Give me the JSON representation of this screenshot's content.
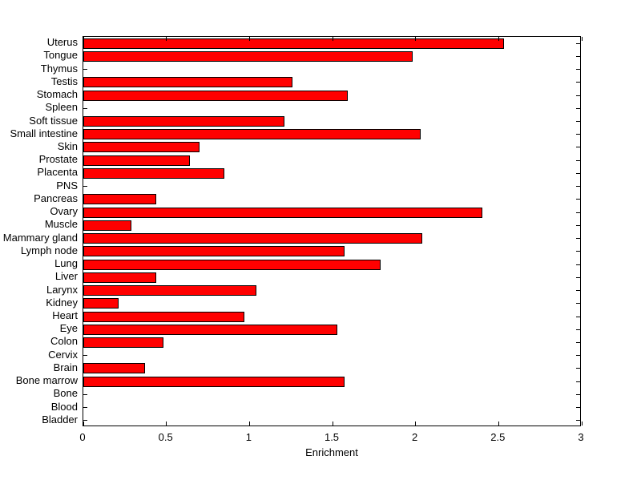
{
  "chart_data": {
    "type": "bar",
    "orientation": "horizontal",
    "title": "",
    "xlabel": "Enrichment",
    "ylabel": "",
    "xlim": [
      0,
      3
    ],
    "xtick_values": [
      0,
      0.5,
      1,
      1.5,
      2,
      2.5,
      3
    ],
    "xtick_labels": [
      "0",
      "0.5",
      "1",
      "1.5",
      "2",
      "2.5",
      "3"
    ],
    "categories": [
      "Uterus",
      "Tongue",
      "Thymus",
      "Testis",
      "Stomach",
      "Spleen",
      "Soft tissue",
      "Small intestine",
      "Skin",
      "Prostate",
      "Placenta",
      "PNS",
      "Pancreas",
      "Ovary",
      "Muscle",
      "Mammary gland",
      "Lymph node",
      "Lung",
      "Liver",
      "Larynx",
      "Kidney",
      "Heart",
      "Eye",
      "Colon",
      "Cervix",
      "Brain",
      "Bone marrow",
      "Bone",
      "Blood",
      "Bladder"
    ],
    "values": [
      2.53,
      1.98,
      0,
      1.26,
      1.59,
      0,
      1.21,
      2.03,
      0.7,
      0.64,
      0.85,
      0,
      0.44,
      2.4,
      0.29,
      2.04,
      1.57,
      1.79,
      0.44,
      1.04,
      0.21,
      0.97,
      1.53,
      0.48,
      0,
      0.37,
      1.57,
      0,
      0,
      0
    ],
    "categories_order_note": "top to bottom",
    "bar_color": "#ff0000",
    "bar_edge_color": "#000000",
    "axis_color": "#000000",
    "text_color": "#000000",
    "background_color": "#ffffff",
    "grid": false,
    "tick_direction": "in",
    "box": true
  }
}
